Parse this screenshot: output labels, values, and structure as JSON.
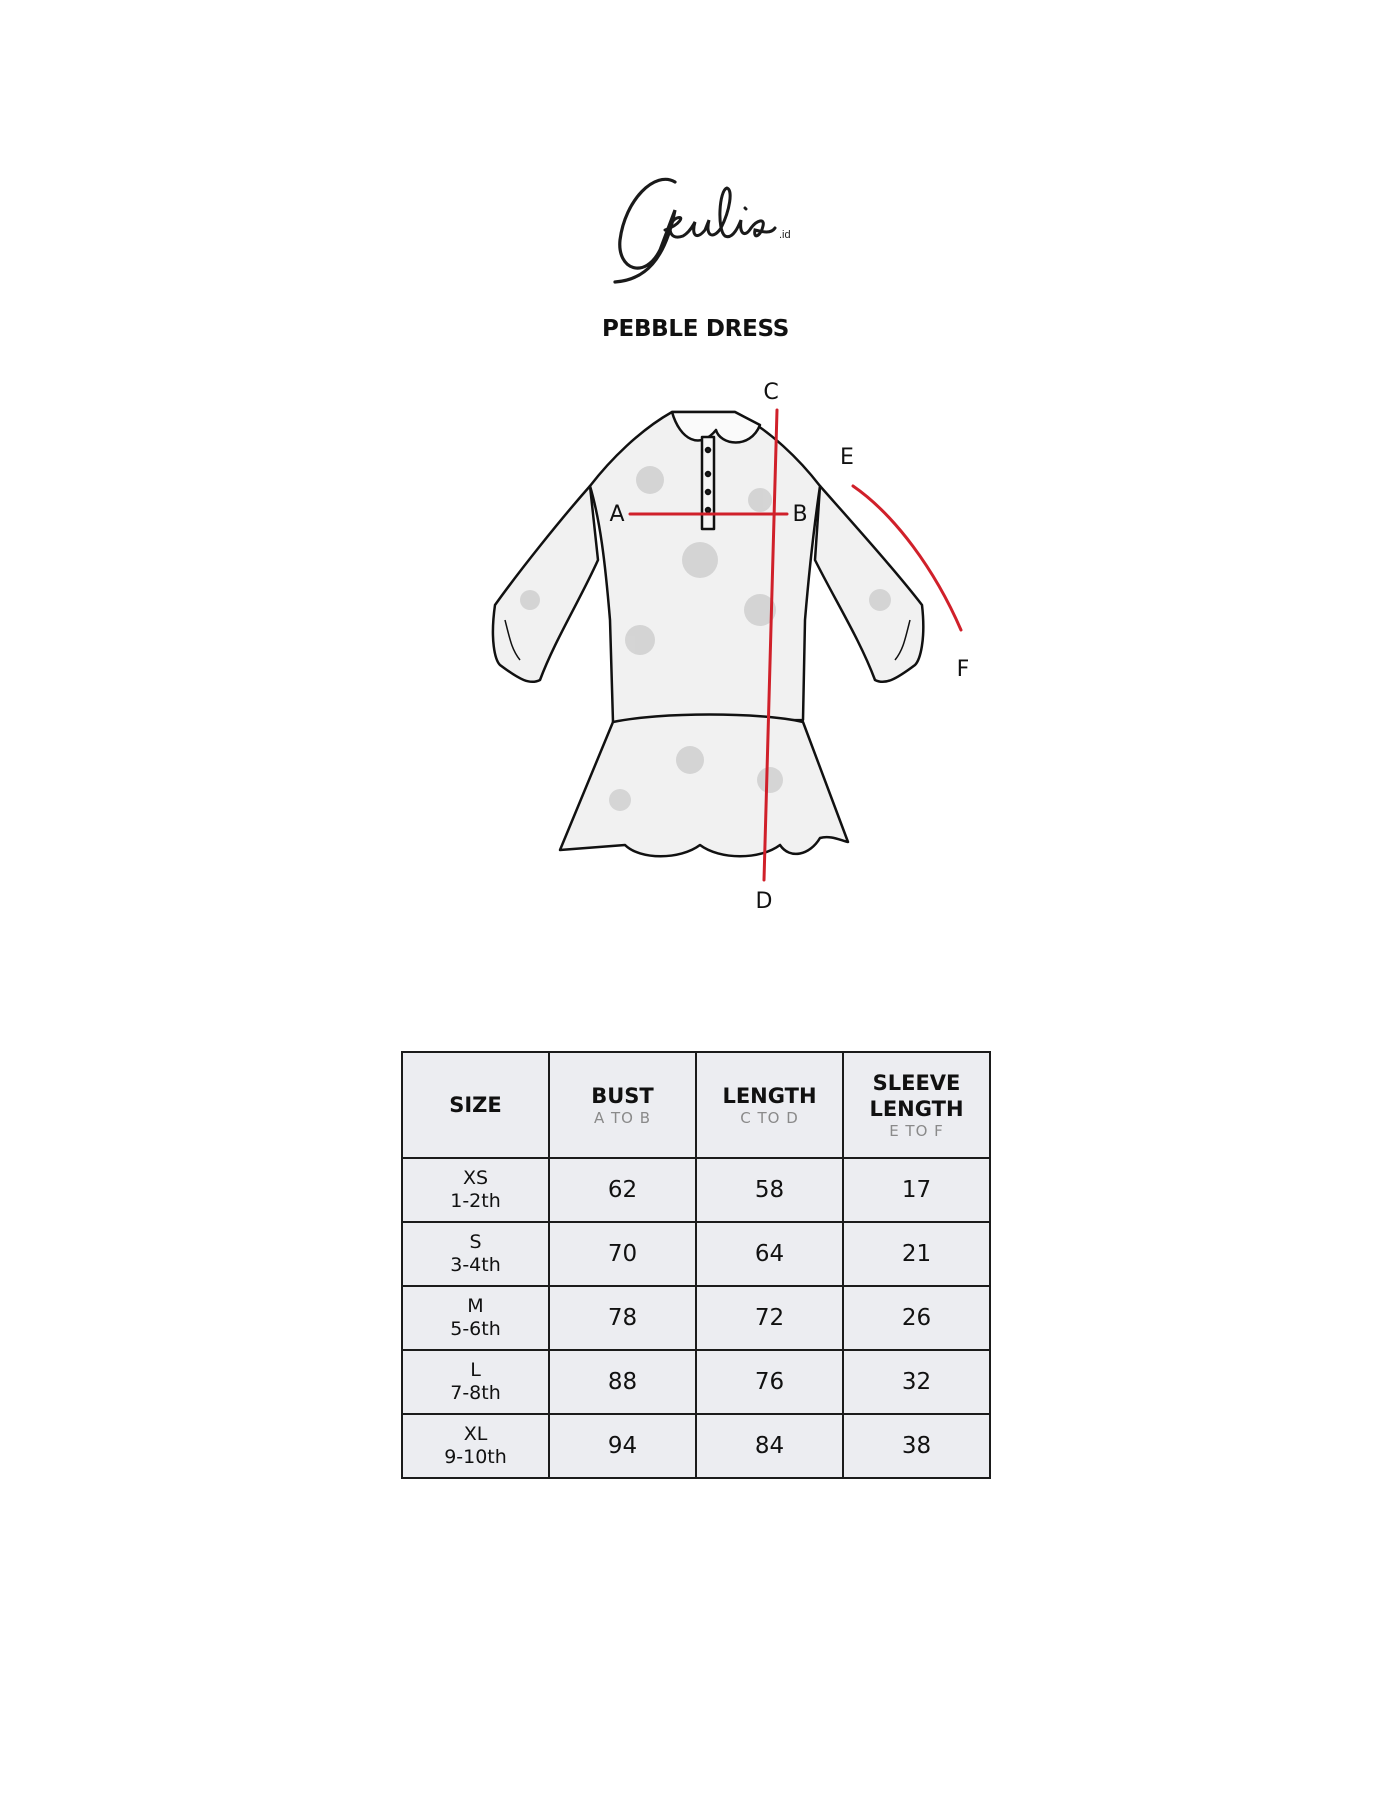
{
  "brand": {
    "logo_text": "Geulis",
    "logo_suffix": ".id"
  },
  "title": "PEBBLE DRESS",
  "diagram": {
    "labels": {
      "a": "A",
      "b": "B",
      "c": "C",
      "d": "D",
      "e": "E",
      "f": "F"
    },
    "measure_color": "#d0202a"
  },
  "table": {
    "headers": [
      {
        "label": "SIZE",
        "sub": ""
      },
      {
        "label": "BUST",
        "sub": "A TO B"
      },
      {
        "label": "LENGTH",
        "sub": "C TO D"
      },
      {
        "label": "SLEEVE LENGTH",
        "sub": "E TO F"
      }
    ],
    "rows": [
      {
        "size": "XS",
        "age": "1-2th",
        "bust": "62",
        "length": "58",
        "sleeve": "17"
      },
      {
        "size": "S",
        "age": "3-4th",
        "bust": "70",
        "length": "64",
        "sleeve": "21"
      },
      {
        "size": "M",
        "age": "5-6th",
        "bust": "78",
        "length": "72",
        "sleeve": "26"
      },
      {
        "size": "L",
        "age": "7-8th",
        "bust": "88",
        "length": "76",
        "sleeve": "32"
      },
      {
        "size": "XL",
        "age": "9-10th",
        "bust": "94",
        "length": "84",
        "sleeve": "38"
      }
    ]
  }
}
